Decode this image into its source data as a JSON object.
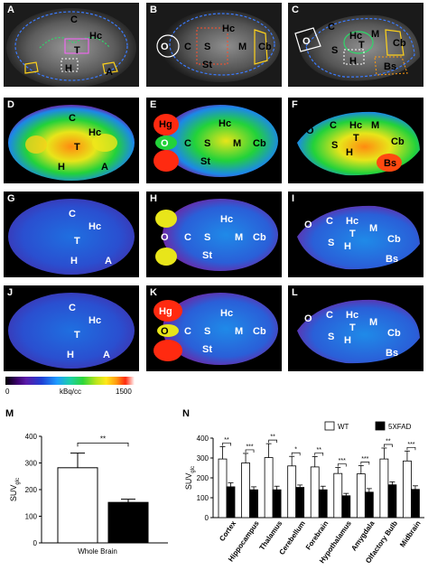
{
  "panels": {
    "A": {
      "letter": "A",
      "regions": [
        "C",
        "Hc",
        "T",
        "H",
        "A"
      ]
    },
    "B": {
      "letter": "B",
      "regions": [
        "O",
        "C",
        "S",
        "Hc",
        "M",
        "Cb",
        "St"
      ]
    },
    "C": {
      "letter": "C",
      "regions": [
        "O",
        "C",
        "Hc",
        "T",
        "M",
        "Cb",
        "S",
        "H",
        "Bs"
      ]
    },
    "D": {
      "letter": "D",
      "regions": [
        "C",
        "Hc",
        "T",
        "H",
        "A"
      ]
    },
    "E": {
      "letter": "E",
      "regions": [
        "Hg",
        "Hc",
        "O",
        "C",
        "S",
        "M",
        "Cb",
        "St"
      ]
    },
    "F": {
      "letter": "F",
      "regions": [
        "O",
        "C",
        "Hc",
        "M",
        "T",
        "S",
        "H",
        "Cb",
        "Bs"
      ]
    },
    "G": {
      "letter": "G",
      "regions": [
        "C",
        "Hc",
        "T",
        "H",
        "A"
      ]
    },
    "H": {
      "letter": "H",
      "regions": [
        "Hc",
        "O",
        "C",
        "S",
        "M",
        "Cb",
        "St"
      ]
    },
    "I": {
      "letter": "I",
      "regions": [
        "O",
        "C",
        "Hc",
        "T",
        "M",
        "S",
        "H",
        "Cb",
        "Bs"
      ]
    },
    "J": {
      "letter": "J",
      "regions": [
        "C",
        "Hc",
        "T",
        "H",
        "A"
      ]
    },
    "K": {
      "letter": "K",
      "regions": [
        "Hg",
        "Hc",
        "O",
        "C",
        "S",
        "M",
        "Cb",
        "St"
      ]
    },
    "L": {
      "letter": "L",
      "regions": [
        "O",
        "C",
        "Hc",
        "T",
        "M",
        "S",
        "H",
        "Cb",
        "Bs"
      ]
    }
  },
  "colorbar": {
    "min": "0",
    "unit": "kBq/cc",
    "max": "1500"
  },
  "chart_M": {
    "letter": "M",
    "ylabel": "SUVglc",
    "ylabel_main": "SUV",
    "ylabel_sub": "glc",
    "yticks": [
      "0",
      "100",
      "200",
      "300",
      "400"
    ],
    "xlabel": "Whole Brain",
    "sig": "**"
  },
  "chart_N": {
    "letter": "N",
    "ylabel_main": "SUV",
    "ylabel_sub": "glc",
    "yticks": [
      "0",
      "100",
      "200",
      "300",
      "400"
    ]
  },
  "legend": {
    "wt": "WT",
    "fxad": "5XFAD"
  },
  "chart_data": [
    {
      "type": "bar",
      "categories": [
        "Whole Brain"
      ],
      "series": [
        {
          "name": "WT",
          "values": [
            282
          ],
          "errors": [
            55
          ]
        },
        {
          "name": "5XFAD",
          "values": [
            152
          ],
          "errors": [
            12
          ]
        }
      ],
      "ylabel": "SUVglc",
      "ylim": [
        0,
        400
      ],
      "significance": [
        "**"
      ]
    },
    {
      "type": "bar",
      "categories": [
        "Cortex",
        "Hippocampus",
        "Thalamus",
        "Cerebellum",
        "Forebrain",
        "Hypothalamus",
        "Amygdala",
        "Olfactory Bulb",
        "Midbrain"
      ],
      "series": [
        {
          "name": "WT",
          "values": [
            295,
            275,
            302,
            260,
            255,
            222,
            220,
            295,
            285
          ],
          "errors": [
            62,
            48,
            70,
            48,
            52,
            30,
            42,
            55,
            50
          ]
        },
        {
          "name": "5XFAD",
          "values": [
            155,
            140,
            140,
            152,
            140,
            110,
            128,
            165,
            142
          ],
          "errors": [
            20,
            15,
            18,
            12,
            18,
            12,
            18,
            15,
            18
          ]
        }
      ],
      "ylabel": "SUVglc",
      "ylim": [
        0,
        400
      ],
      "significance": [
        "**",
        "***",
        "**",
        "*",
        "**",
        "***",
        "***",
        "**",
        "***"
      ]
    }
  ]
}
